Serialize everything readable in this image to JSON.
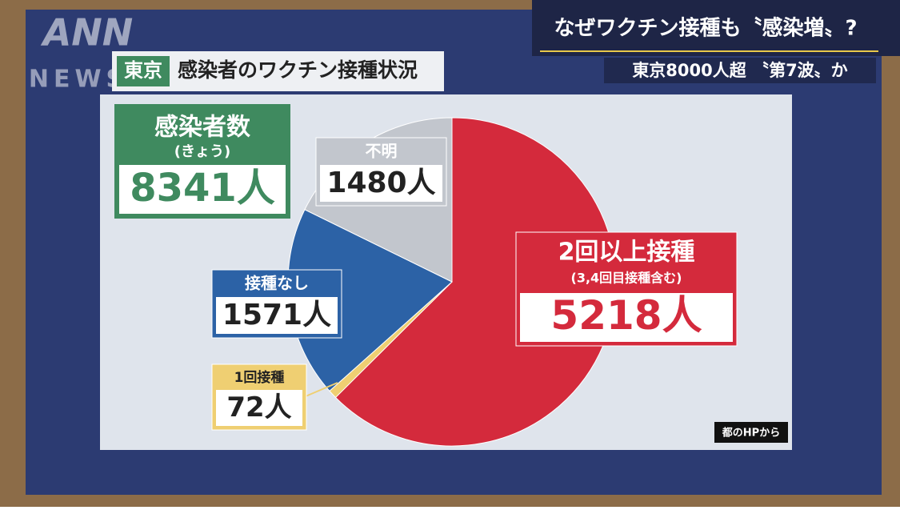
{
  "header": {
    "logo": "ANN",
    "logo_sub": "NEWS",
    "headline": "なぜワクチン接種も〝感染増〟?",
    "subline": "東京8000人超 〝第7波〟か"
  },
  "panel": {
    "tag": "東京",
    "title": "感染者のワクチン接種状況",
    "total_title": "感染者数",
    "total_subtitle": "(きょう)",
    "total_label": "8341人",
    "source": "都のHPから"
  },
  "chart_data": {
    "type": "pie",
    "categories": [
      "2回以上接種",
      "1回接種",
      "接種なし",
      "不明"
    ],
    "values": [
      5218,
      72,
      1571,
      1480
    ],
    "value_labels": [
      "5218人",
      "72人",
      "1571人",
      "1480人"
    ],
    "colors": [
      "#d42a3c",
      "#efcf72",
      "#2c62a6",
      "#c2c6cd"
    ],
    "annotation": "(3,4回目接種含む)"
  }
}
